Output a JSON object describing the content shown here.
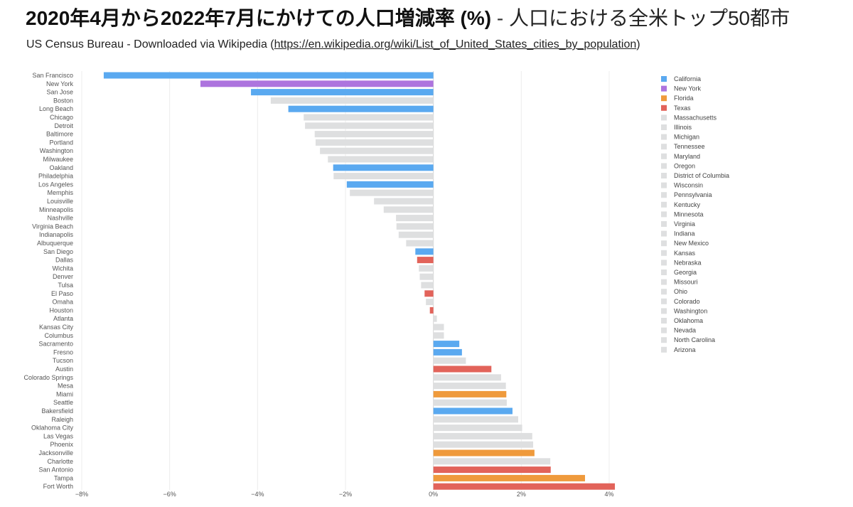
{
  "header": {
    "title_bold": "2020年4月から2022年7月にかけての人口増減率 (%)",
    "title_sep": " - ",
    "title_rest": "人口における全米トップ50都市",
    "subtitle_prefix": "US Census Bureau - Downloaded via Wikipedia (",
    "subtitle_link": "https://en.wikipedia.org/wiki/List_of_United_States_cities_by_population",
    "subtitle_suffix": ")"
  },
  "colors": {
    "California": "#5aa9f0",
    "New York": "#ad74de",
    "Florida": "#ef9a3c",
    "Texas": "#e2635a",
    "other": "#dedfe0"
  },
  "chart_data": {
    "type": "bar",
    "orientation": "horizontal",
    "xlim": [
      -8,
      4
    ],
    "x_ticks": [
      -8,
      -6,
      -4,
      -2,
      0,
      2,
      4
    ],
    "x_tick_labels": [
      "−8%",
      "−6%",
      "−4%",
      "−2%",
      "0%",
      "2%",
      "4%"
    ],
    "grid": true,
    "legend_position": "right",
    "categories": [
      "San Francisco",
      "New York",
      "San Jose",
      "Boston",
      "Long Beach",
      "Chicago",
      "Detroit",
      "Baltimore",
      "Portland",
      "Washington",
      "Milwaukee",
      "Oakland",
      "Philadelphia",
      "Los Angeles",
      "Memphis",
      "Louisville",
      "Minneapolis",
      "Nashville",
      "Virginia Beach",
      "Indianapolis",
      "Albuquerque",
      "San Diego",
      "Dallas",
      "Wichita",
      "Denver",
      "Tulsa",
      "El Paso",
      "Omaha",
      "Houston",
      "Atlanta",
      "Kansas City",
      "Columbus",
      "Sacramento",
      "Fresno",
      "Tucson",
      "Austin",
      "Colorado Springs",
      "Mesa",
      "Miami",
      "Seattle",
      "Bakersfield",
      "Raleigh",
      "Oklahoma City",
      "Las Vegas",
      "Phoenix",
      "Jacksonville",
      "Charlotte",
      "San Antonio",
      "Tampa",
      "Fort Worth"
    ],
    "values": [
      -7.5,
      -5.3,
      -4.15,
      -3.7,
      -3.3,
      -2.95,
      -2.92,
      -2.7,
      -2.68,
      -2.58,
      -2.4,
      -2.28,
      -2.27,
      -1.97,
      -1.9,
      -1.35,
      -1.13,
      -0.85,
      -0.84,
      -0.79,
      -0.62,
      -0.41,
      -0.37,
      -0.33,
      -0.31,
      -0.28,
      -0.2,
      -0.17,
      -0.08,
      0.08,
      0.24,
      0.24,
      0.59,
      0.65,
      0.74,
      1.32,
      1.54,
      1.65,
      1.66,
      1.67,
      1.8,
      1.93,
      2.02,
      2.25,
      2.27,
      2.3,
      2.66,
      2.67,
      3.45,
      4.13
    ],
    "states": [
      "California",
      "New York",
      "California",
      "Massachusetts",
      "California",
      "Illinois",
      "Michigan",
      "Maryland",
      "Oregon",
      "District of Columbia",
      "Wisconsin",
      "California",
      "Pennsylvania",
      "California",
      "Tennessee",
      "Kentucky",
      "Minnesota",
      "Tennessee",
      "Virginia",
      "Indiana",
      "New Mexico",
      "California",
      "Texas",
      "Kansas",
      "Colorado",
      "Oklahoma",
      "Texas",
      "Nebraska",
      "Texas",
      "Georgia",
      "Missouri",
      "Ohio",
      "California",
      "California",
      "Arizona",
      "Texas",
      "Colorado",
      "Arizona",
      "Florida",
      "Washington",
      "California",
      "North Carolina",
      "Oklahoma",
      "Nevada",
      "Arizona",
      "Florida",
      "North Carolina",
      "Texas",
      "Florida",
      "Texas"
    ],
    "legend": [
      "California",
      "New York",
      "Florida",
      "Texas",
      "Massachusetts",
      "Illinois",
      "Michigan",
      "Tennessee",
      "Maryland",
      "Oregon",
      "District of Columbia",
      "Wisconsin",
      "Pennsylvania",
      "Kentucky",
      "Minnesota",
      "Virginia",
      "Indiana",
      "New Mexico",
      "Kansas",
      "Nebraska",
      "Georgia",
      "Missouri",
      "Ohio",
      "Colorado",
      "Washington",
      "Oklahoma",
      "Nevada",
      "North Carolina",
      "Arizona"
    ]
  }
}
